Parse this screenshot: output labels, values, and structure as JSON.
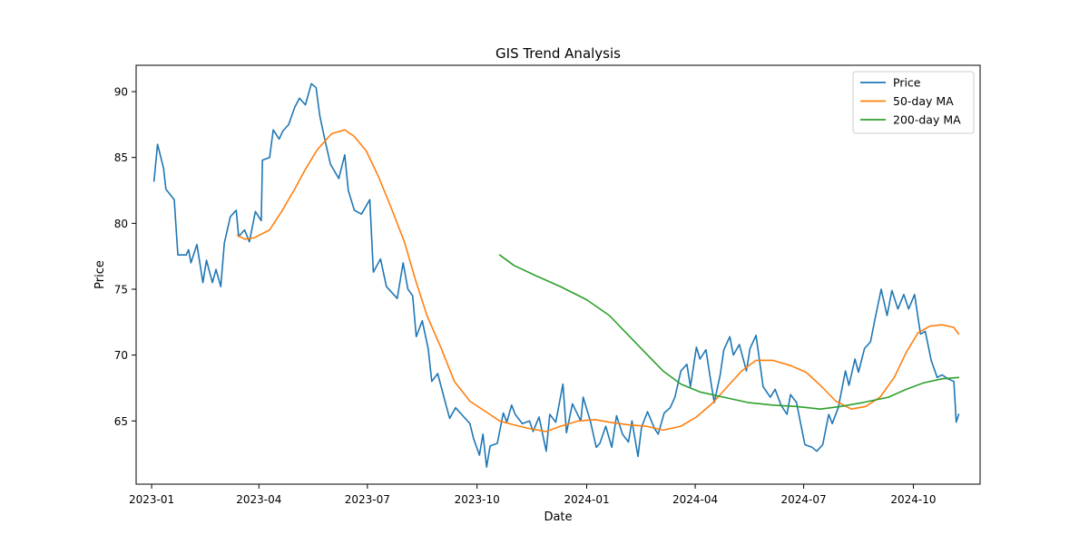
{
  "chart_data": {
    "type": "line",
    "title": "GIS Trend Analysis",
    "xlabel": "Date",
    "ylabel": "Price",
    "x_ticks": [
      "2023-01",
      "2023-04",
      "2023-07",
      "2023-10",
      "2024-01",
      "2024-04",
      "2024-07",
      "2024-10"
    ],
    "y_ticks": [
      65,
      70,
      75,
      80,
      85,
      90
    ],
    "xlim": [
      "2022-12-19",
      "2024-11-26"
    ],
    "ylim": [
      60.2,
      92.0
    ],
    "grid": false,
    "legend_position": "upper right",
    "series": [
      {
        "name": "Price",
        "color": "#1f77b4",
        "points": [
          [
            "2023-01-03",
            83.2
          ],
          [
            "2023-01-06",
            86.0
          ],
          [
            "2023-01-11",
            84.2
          ],
          [
            "2023-01-13",
            82.6
          ],
          [
            "2023-01-20",
            81.8
          ],
          [
            "2023-01-23",
            77.6
          ],
          [
            "2023-01-30",
            77.6
          ],
          [
            "2023-02-01",
            78.0
          ],
          [
            "2023-02-03",
            77.0
          ],
          [
            "2023-02-08",
            78.4
          ],
          [
            "2023-02-13",
            75.5
          ],
          [
            "2023-02-16",
            77.2
          ],
          [
            "2023-02-21",
            75.5
          ],
          [
            "2023-02-24",
            76.5
          ],
          [
            "2023-02-28",
            75.2
          ],
          [
            "2023-03-03",
            78.5
          ],
          [
            "2023-03-08",
            80.5
          ],
          [
            "2023-03-13",
            81.0
          ],
          [
            "2023-03-15",
            79.0
          ],
          [
            "2023-03-20",
            79.5
          ],
          [
            "2023-03-24",
            78.6
          ],
          [
            "2023-03-29",
            80.9
          ],
          [
            "2023-04-03",
            80.2
          ],
          [
            "2023-04-04",
            84.8
          ],
          [
            "2023-04-10",
            85.0
          ],
          [
            "2023-04-13",
            87.1
          ],
          [
            "2023-04-18",
            86.4
          ],
          [
            "2023-04-21",
            87.0
          ],
          [
            "2023-04-26",
            87.5
          ],
          [
            "2023-05-01",
            88.8
          ],
          [
            "2023-05-05",
            89.5
          ],
          [
            "2023-05-10",
            89.0
          ],
          [
            "2023-05-15",
            90.6
          ],
          [
            "2023-05-19",
            90.3
          ],
          [
            "2023-05-22",
            88.2
          ],
          [
            "2023-05-26",
            86.5
          ],
          [
            "2023-05-31",
            84.5
          ],
          [
            "2023-06-07",
            83.4
          ],
          [
            "2023-06-12",
            85.2
          ],
          [
            "2023-06-15",
            82.5
          ],
          [
            "2023-06-20",
            81.0
          ],
          [
            "2023-06-26",
            80.7
          ],
          [
            "2023-07-03",
            81.8
          ],
          [
            "2023-07-06",
            76.3
          ],
          [
            "2023-07-12",
            77.3
          ],
          [
            "2023-07-17",
            75.2
          ],
          [
            "2023-07-21",
            74.8
          ],
          [
            "2023-07-26",
            74.3
          ],
          [
            "2023-07-31",
            77.0
          ],
          [
            "2023-08-04",
            75.0
          ],
          [
            "2023-08-08",
            74.5
          ],
          [
            "2023-08-11",
            71.4
          ],
          [
            "2023-08-16",
            72.6
          ],
          [
            "2023-08-21",
            70.5
          ],
          [
            "2023-08-24",
            68.0
          ],
          [
            "2023-08-29",
            68.6
          ],
          [
            "2023-09-05",
            66.2
          ],
          [
            "2023-09-08",
            65.2
          ],
          [
            "2023-09-13",
            66.0
          ],
          [
            "2023-09-18",
            65.5
          ],
          [
            "2023-09-25",
            64.8
          ],
          [
            "2023-09-28",
            63.7
          ],
          [
            "2023-10-03",
            62.4
          ],
          [
            "2023-10-06",
            64.0
          ],
          [
            "2023-10-09",
            61.5
          ],
          [
            "2023-10-12",
            63.1
          ],
          [
            "2023-10-18",
            63.3
          ],
          [
            "2023-10-23",
            65.6
          ],
          [
            "2023-10-26",
            64.9
          ],
          [
            "2023-10-30",
            66.2
          ],
          [
            "2023-11-02",
            65.5
          ],
          [
            "2023-11-08",
            64.8
          ],
          [
            "2023-11-14",
            65.0
          ],
          [
            "2023-11-17",
            64.2
          ],
          [
            "2023-11-22",
            65.3
          ],
          [
            "2023-11-28",
            62.7
          ],
          [
            "2023-12-01",
            65.5
          ],
          [
            "2023-12-06",
            64.9
          ],
          [
            "2023-12-12",
            67.8
          ],
          [
            "2023-12-15",
            64.1
          ],
          [
            "2023-12-20",
            66.3
          ],
          [
            "2023-12-27",
            65.0
          ],
          [
            "2023-12-29",
            66.8
          ],
          [
            "2024-01-04",
            65.0
          ],
          [
            "2024-01-09",
            63.0
          ],
          [
            "2024-01-12",
            63.3
          ],
          [
            "2024-01-17",
            64.6
          ],
          [
            "2024-01-22",
            63.0
          ],
          [
            "2024-01-26",
            65.4
          ],
          [
            "2024-01-31",
            64.0
          ],
          [
            "2024-02-05",
            63.4
          ],
          [
            "2024-02-08",
            65.0
          ],
          [
            "2024-02-13",
            62.3
          ],
          [
            "2024-02-16",
            64.5
          ],
          [
            "2024-02-21",
            65.7
          ],
          [
            "2024-02-27",
            64.4
          ],
          [
            "2024-03-01",
            64.0
          ],
          [
            "2024-03-06",
            65.6
          ],
          [
            "2024-03-11",
            66.0
          ],
          [
            "2024-03-15",
            66.8
          ],
          [
            "2024-03-20",
            68.8
          ],
          [
            "2024-03-25",
            69.3
          ],
          [
            "2024-03-28",
            67.6
          ],
          [
            "2024-04-02",
            70.6
          ],
          [
            "2024-04-05",
            69.7
          ],
          [
            "2024-04-10",
            70.4
          ],
          [
            "2024-04-15",
            67.5
          ],
          [
            "2024-04-17",
            66.4
          ],
          [
            "2024-04-22",
            68.5
          ],
          [
            "2024-04-25",
            70.4
          ],
          [
            "2024-04-30",
            71.4
          ],
          [
            "2024-05-03",
            70.0
          ],
          [
            "2024-05-08",
            70.8
          ],
          [
            "2024-05-14",
            68.8
          ],
          [
            "2024-05-17",
            70.5
          ],
          [
            "2024-05-22",
            71.5
          ],
          [
            "2024-05-28",
            67.6
          ],
          [
            "2024-06-03",
            66.8
          ],
          [
            "2024-06-07",
            67.4
          ],
          [
            "2024-06-12",
            66.2
          ],
          [
            "2024-06-17",
            65.5
          ],
          [
            "2024-06-20",
            67.0
          ],
          [
            "2024-06-25",
            66.4
          ],
          [
            "2024-06-28",
            65.0
          ],
          [
            "2024-07-02",
            63.2
          ],
          [
            "2024-07-08",
            63.0
          ],
          [
            "2024-07-12",
            62.7
          ],
          [
            "2024-07-17",
            63.2
          ],
          [
            "2024-07-22",
            65.5
          ],
          [
            "2024-07-25",
            64.8
          ],
          [
            "2024-07-30",
            66.0
          ],
          [
            "2024-08-05",
            68.8
          ],
          [
            "2024-08-08",
            67.7
          ],
          [
            "2024-08-13",
            69.7
          ],
          [
            "2024-08-16",
            68.7
          ],
          [
            "2024-08-21",
            70.5
          ],
          [
            "2024-08-26",
            71.0
          ],
          [
            "2024-08-30",
            72.8
          ],
          [
            "2024-09-04",
            75.0
          ],
          [
            "2024-09-09",
            73.0
          ],
          [
            "2024-09-13",
            74.9
          ],
          [
            "2024-09-18",
            73.5
          ],
          [
            "2024-09-23",
            74.6
          ],
          [
            "2024-09-27",
            73.5
          ],
          [
            "2024-10-02",
            74.6
          ],
          [
            "2024-10-07",
            71.6
          ],
          [
            "2024-10-11",
            71.8
          ],
          [
            "2024-10-16",
            69.6
          ],
          [
            "2024-10-21",
            68.3
          ],
          [
            "2024-10-25",
            68.5
          ],
          [
            "2024-10-30",
            68.2
          ],
          [
            "2024-11-04",
            68.0
          ],
          [
            "2024-11-06",
            64.9
          ],
          [
            "2024-11-08",
            65.5
          ]
        ]
      },
      {
        "name": "50-day MA",
        "color": "#ff7f0e",
        "points": [
          [
            "2023-03-14",
            79.1
          ],
          [
            "2023-03-20",
            78.8
          ],
          [
            "2023-03-28",
            78.9
          ],
          [
            "2023-04-10",
            79.5
          ],
          [
            "2023-04-20",
            80.9
          ],
          [
            "2023-05-01",
            82.6
          ],
          [
            "2023-05-10",
            84.1
          ],
          [
            "2023-05-20",
            85.6
          ],
          [
            "2023-06-01",
            86.8
          ],
          [
            "2023-06-12",
            87.1
          ],
          [
            "2023-06-20",
            86.6
          ],
          [
            "2023-06-30",
            85.5
          ],
          [
            "2023-07-10",
            83.6
          ],
          [
            "2023-07-20",
            81.4
          ],
          [
            "2023-08-01",
            78.6
          ],
          [
            "2023-08-10",
            75.8
          ],
          [
            "2023-08-20",
            73.0
          ],
          [
            "2023-09-01",
            70.5
          ],
          [
            "2023-09-12",
            68.0
          ],
          [
            "2023-09-25",
            66.5
          ],
          [
            "2023-10-10",
            65.6
          ],
          [
            "2023-10-20",
            65.0
          ],
          [
            "2023-11-01",
            64.7
          ],
          [
            "2023-11-15",
            64.4
          ],
          [
            "2023-11-28",
            64.2
          ],
          [
            "2023-12-10",
            64.6
          ],
          [
            "2023-12-25",
            65.0
          ],
          [
            "2024-01-08",
            65.1
          ],
          [
            "2024-01-20",
            64.9
          ],
          [
            "2024-02-05",
            64.7
          ],
          [
            "2024-02-20",
            64.6
          ],
          [
            "2024-03-05",
            64.3
          ],
          [
            "2024-03-20",
            64.6
          ],
          [
            "2024-04-02",
            65.3
          ],
          [
            "2024-04-15",
            66.3
          ],
          [
            "2024-04-28",
            67.6
          ],
          [
            "2024-05-10",
            68.8
          ],
          [
            "2024-05-22",
            69.6
          ],
          [
            "2024-06-05",
            69.6
          ],
          [
            "2024-06-20",
            69.2
          ],
          [
            "2024-07-03",
            68.7
          ],
          [
            "2024-07-15",
            67.7
          ],
          [
            "2024-07-28",
            66.5
          ],
          [
            "2024-08-10",
            65.9
          ],
          [
            "2024-08-22",
            66.1
          ],
          [
            "2024-09-03",
            66.8
          ],
          [
            "2024-09-15",
            68.3
          ],
          [
            "2024-09-25",
            70.2
          ],
          [
            "2024-10-05",
            71.7
          ],
          [
            "2024-10-15",
            72.2
          ],
          [
            "2024-10-25",
            72.3
          ],
          [
            "2024-11-04",
            72.1
          ],
          [
            "2024-11-08",
            71.6
          ]
        ]
      },
      {
        "name": "200-day MA",
        "color": "#2ca02c",
        "points": [
          [
            "2023-10-20",
            77.6
          ],
          [
            "2023-11-01",
            76.8
          ],
          [
            "2023-11-20",
            76.0
          ],
          [
            "2023-12-10",
            75.2
          ],
          [
            "2024-01-01",
            74.2
          ],
          [
            "2024-01-20",
            73.0
          ],
          [
            "2024-02-05",
            71.5
          ],
          [
            "2024-02-20",
            70.1
          ],
          [
            "2024-03-05",
            68.8
          ],
          [
            "2024-03-20",
            67.8
          ],
          [
            "2024-04-05",
            67.2
          ],
          [
            "2024-04-25",
            66.8
          ],
          [
            "2024-05-15",
            66.4
          ],
          [
            "2024-06-05",
            66.2
          ],
          [
            "2024-06-25",
            66.1
          ],
          [
            "2024-07-15",
            65.9
          ],
          [
            "2024-08-01",
            66.1
          ],
          [
            "2024-08-20",
            66.4
          ],
          [
            "2024-09-10",
            66.8
          ],
          [
            "2024-09-25",
            67.4
          ],
          [
            "2024-10-10",
            67.9
          ],
          [
            "2024-10-25",
            68.2
          ],
          [
            "2024-11-08",
            68.3
          ]
        ]
      }
    ]
  }
}
